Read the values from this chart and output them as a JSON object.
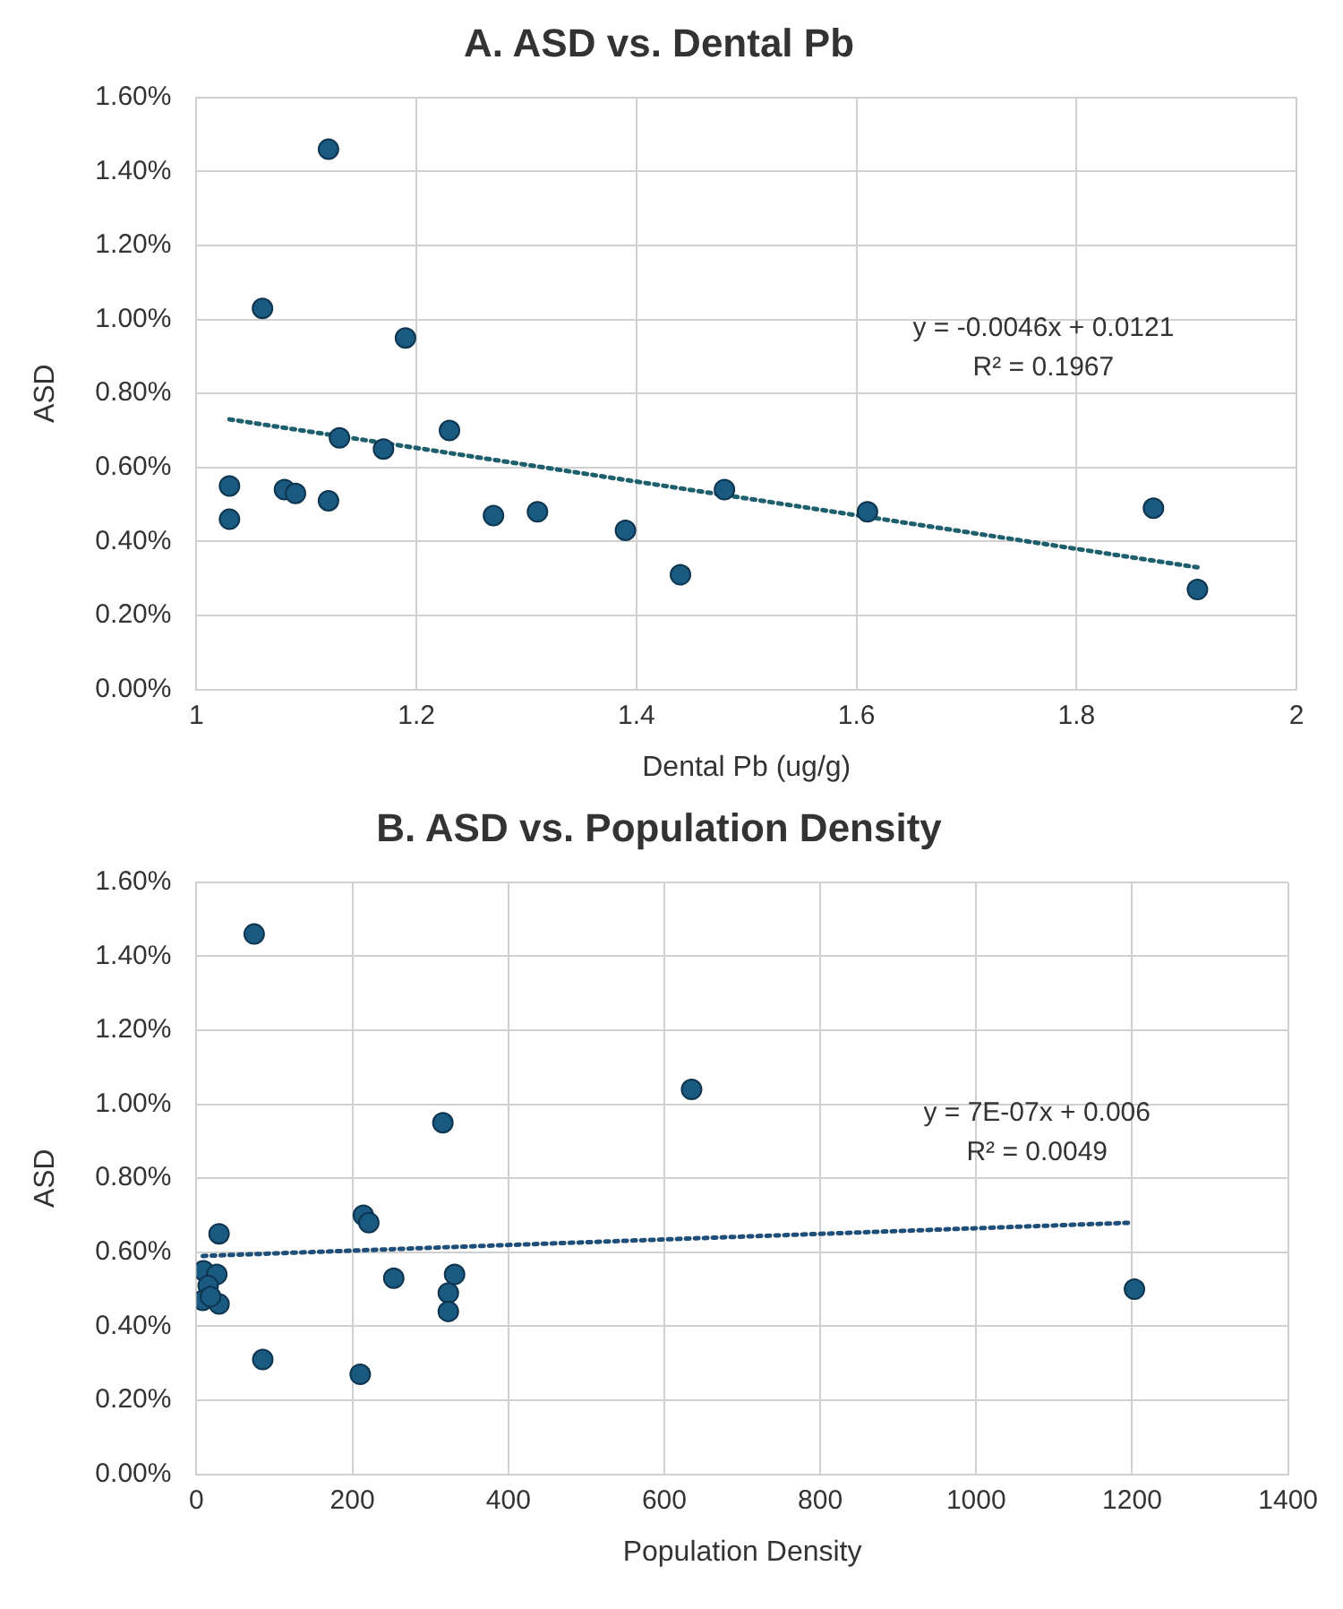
{
  "chart_data": [
    {
      "type": "scatter",
      "title": "A. ASD vs. Dental Pb",
      "xlabel": "Dental Pb (ug/g)",
      "ylabel": "ASD",
      "series": [
        {
          "color": "#1b5a80",
          "marker": "circle",
          "x": [
            1.03,
            1.03,
            1.06,
            1.08,
            1.09,
            1.12,
            1.12,
            1.13,
            1.17,
            1.19,
            1.23,
            1.27,
            1.31,
            1.39,
            1.44,
            1.48,
            1.61,
            1.87,
            1.91
          ],
          "values": [
            0.55,
            0.46,
            1.03,
            0.54,
            0.53,
            1.46,
            0.51,
            0.68,
            0.65,
            0.95,
            0.7,
            0.47,
            0.48,
            0.43,
            0.31,
            0.54,
            0.48,
            0.49,
            0.27
          ]
        },
        {
          "type": "line",
          "color": "#1e5f6e",
          "marker": "none",
          "line_style": "dotted",
          "x": [
            1.03,
            1.91
          ],
          "values": [
            0.73,
            0.33
          ]
        }
      ],
      "annotations": [
        "y = -0.0046x + 0.0121",
        "R² = 0.1967"
      ],
      "xlim": [
        1,
        2
      ],
      "xticks": [
        1,
        1.2,
        1.4,
        1.6,
        1.8,
        2
      ],
      "ylim": [
        0,
        1.6
      ],
      "yticks": [
        {
          "value": 0,
          "label": "0.00%"
        },
        {
          "value": 0.2,
          "label": "0.20%"
        },
        {
          "value": 0.4,
          "label": "0.40%"
        },
        {
          "value": 0.6,
          "label": "0.60%"
        },
        {
          "value": 0.8,
          "label": "0.80%"
        },
        {
          "value": 1.0,
          "label": "1.00%"
        },
        {
          "value": 1.2,
          "label": "1.20%"
        },
        {
          "value": 1.4,
          "label": "1.40%"
        },
        {
          "value": 1.6,
          "label": "1.60%"
        }
      ],
      "grid": true,
      "legend": false
    },
    {
      "type": "scatter",
      "title": "B. ASD vs. Population Density",
      "xlabel": "Population Density",
      "ylabel": "ASD",
      "series": [
        {
          "color": "#1b5a80",
          "marker": "circle",
          "x": [
            9,
            26,
            15,
            8,
            29,
            18,
            74,
            85,
            29,
            210,
            214,
            221,
            253,
            316,
            331,
            323,
            323,
            635,
            1203
          ],
          "values": [
            0.55,
            0.54,
            0.51,
            0.47,
            0.46,
            0.48,
            1.46,
            0.31,
            0.65,
            0.27,
            0.7,
            0.68,
            0.53,
            0.95,
            0.54,
            0.49,
            0.44,
            1.04,
            0.5
          ]
        },
        {
          "type": "line",
          "color": "#1f4e79",
          "marker": "none",
          "line_style": "dotted",
          "x": [
            8,
            1200
          ],
          "values": [
            0.59,
            0.68
          ]
        }
      ],
      "annotations": [
        "y = 7E-07x + 0.006",
        "R² = 0.0049"
      ],
      "xlim": [
        0,
        1400
      ],
      "xticks": [
        0,
        200,
        400,
        600,
        800,
        1000,
        1200,
        1400
      ],
      "ylim": [
        0,
        1.6
      ],
      "yticks": [
        {
          "value": 0,
          "label": "0.00%"
        },
        {
          "value": 0.2,
          "label": "0.20%"
        },
        {
          "value": 0.4,
          "label": "0.40%"
        },
        {
          "value": 0.6,
          "label": "0.60%"
        },
        {
          "value": 0.8,
          "label": "0.80%"
        },
        {
          "value": 1.0,
          "label": "1.00%"
        },
        {
          "value": 1.2,
          "label": "1.20%"
        },
        {
          "value": 1.4,
          "label": "1.40%"
        },
        {
          "value": 1.6,
          "label": "1.60%"
        }
      ],
      "grid": true,
      "legend": false
    }
  ]
}
